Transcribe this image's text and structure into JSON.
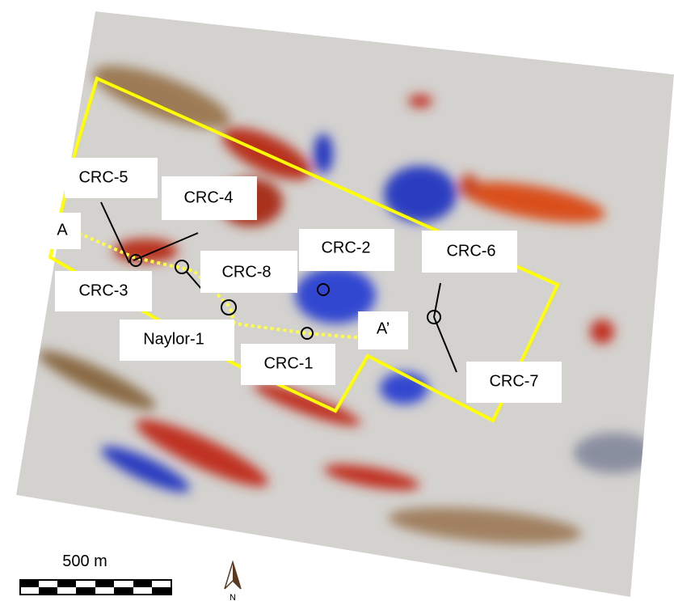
{
  "labels": [
    "CRC-5",
    "CRC-4",
    "A",
    "CRC-3",
    "CRC-8",
    "CRC-2",
    "CRC-6",
    "Naylor-1",
    "CRC-1",
    "A’",
    "CRC-7"
  ],
  "scale_bar": "500 m",
  "north": "N"
}
